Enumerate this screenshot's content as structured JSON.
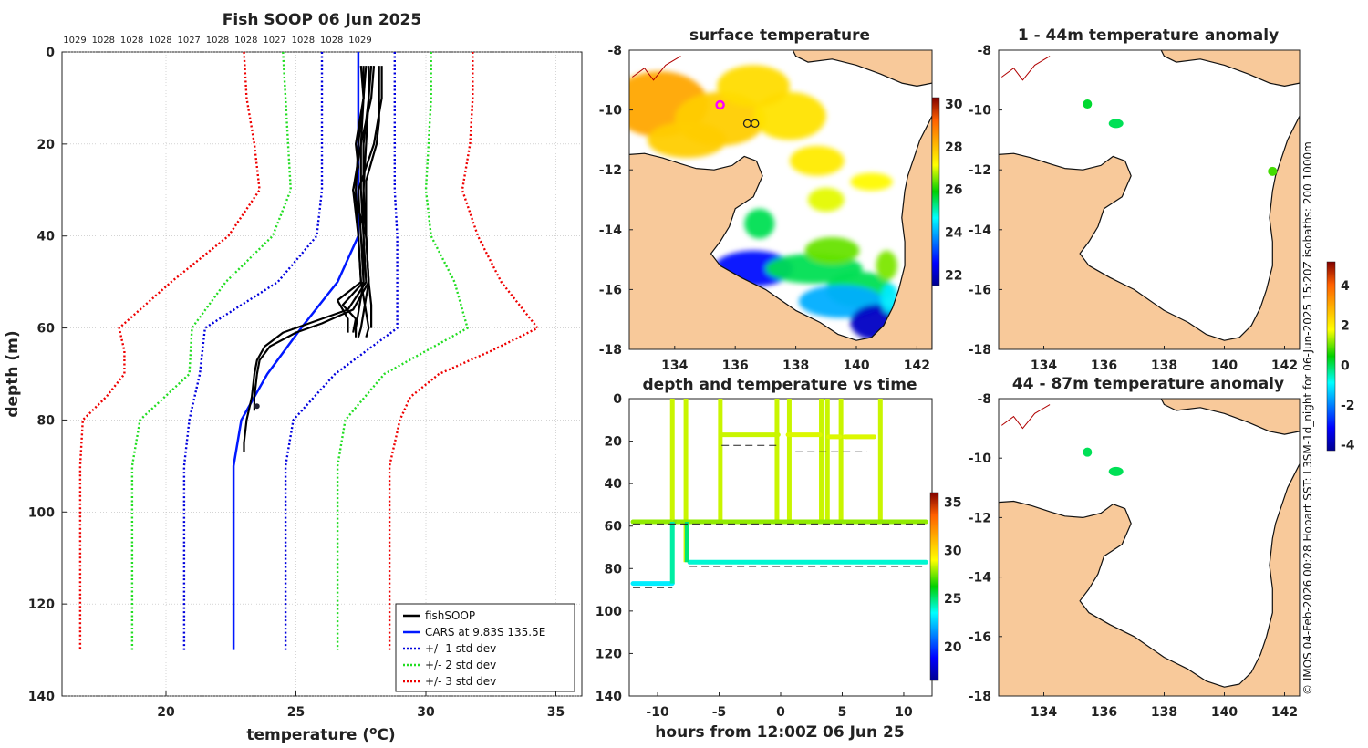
{
  "chart_data": [
    {
      "id": "profile",
      "type": "line",
      "title": "Fish SOOP 06 Jun 2025",
      "xlabel": "temperature (",
      "xlabel_sup": "o",
      "xlabel_end": "C)",
      "ylabel": "depth (m)",
      "xlim": [
        16,
        36
      ],
      "ylim": [
        0,
        140
      ],
      "xticks": [
        20,
        25,
        30,
        35
      ],
      "yticks": [
        0,
        20,
        40,
        60,
        80,
        100,
        120,
        140
      ],
      "density_labels": [
        "1029",
        "1028",
        "1028",
        "1028",
        "1027",
        "1028",
        "1028",
        "1027",
        "1028",
        "1028",
        "1029"
      ],
      "legend": [
        "fishSOOP",
        "CARS at 9.83S 135.5E",
        "+/- 1 std dev",
        "+/- 2 std dev",
        "+/- 3 std dev"
      ],
      "cars": {
        "depth": [
          0,
          10,
          20,
          30,
          40,
          50,
          60,
          70,
          80,
          90,
          100,
          110,
          120,
          130
        ],
        "temp": [
          27.4,
          27.4,
          27.4,
          27.4,
          27.4,
          26.6,
          25.2,
          23.9,
          22.9,
          22.6,
          22.6,
          22.6,
          22.6,
          22.6
        ]
      },
      "std1": {
        "depth": [
          0,
          10,
          20,
          30,
          40,
          50,
          60,
          70,
          80,
          90,
          100,
          110,
          120,
          130
        ],
        "lo": [
          26.0,
          26.0,
          26.0,
          26.0,
          25.8,
          24.3,
          21.5,
          21.3,
          20.9,
          20.7,
          20.7,
          20.7,
          20.7,
          20.7
        ],
        "hi": [
          28.8,
          28.8,
          28.8,
          28.8,
          28.9,
          28.9,
          28.9,
          26.5,
          24.9,
          24.6,
          24.6,
          24.6,
          24.6,
          24.6
        ]
      },
      "std2": {
        "depth": [
          0,
          10,
          20,
          30,
          40,
          50,
          60,
          70,
          80,
          90,
          100,
          110,
          120,
          130
        ],
        "lo": [
          24.5,
          24.6,
          24.7,
          24.8,
          24.1,
          22.3,
          21.0,
          20.9,
          19.0,
          18.7,
          18.7,
          18.7,
          18.7,
          18.7
        ],
        "hi": [
          30.2,
          30.2,
          30.1,
          30.0,
          30.2,
          31.1,
          31.6,
          28.4,
          26.9,
          26.6,
          26.6,
          26.6,
          26.6,
          26.6
        ]
      },
      "std3": {
        "depth": [
          0,
          10,
          20,
          30,
          40,
          50,
          60,
          65,
          70,
          75,
          80,
          90,
          100,
          110,
          120,
          130
        ],
        "lo": [
          23.0,
          23.1,
          23.4,
          23.6,
          22.4,
          20.2,
          18.2,
          18.4,
          18.4,
          17.7,
          16.8,
          16.7,
          16.7,
          16.7,
          16.7,
          16.7
        ],
        "hi": [
          31.8,
          31.8,
          31.7,
          31.4,
          32.0,
          32.9,
          34.3,
          32.5,
          30.5,
          29.4,
          29.0,
          28.6,
          28.6,
          28.6,
          28.6,
          28.6
        ]
      },
      "fish_cast": [
        {
          "depth": [
            3,
            10,
            20,
            30,
            40,
            50,
            56,
            59,
            61,
            64,
            67,
            70,
            75,
            80,
            85,
            87
          ],
          "temp": [
            27.7,
            27.6,
            27.5,
            27.5,
            27.6,
            27.7,
            27.0,
            25.5,
            24.5,
            23.8,
            23.5,
            23.4,
            23.3,
            23.1,
            23.0,
            23.0
          ]
        },
        {
          "depth": [
            3,
            10,
            20,
            30,
            40,
            50,
            56,
            59,
            61,
            64,
            67,
            70,
            75,
            78
          ],
          "temp": [
            27.9,
            27.8,
            27.7,
            27.6,
            27.7,
            27.8,
            27.2,
            26.0,
            25.0,
            24.0,
            23.6,
            23.5,
            23.4,
            23.4
          ]
        },
        {
          "depth": [
            3,
            10,
            20,
            30,
            40,
            50,
            60,
            62
          ],
          "temp": [
            28.0,
            27.9,
            27.5,
            27.2,
            27.7,
            27.8,
            27.5,
            27.4
          ]
        },
        {
          "depth": [
            3,
            10,
            20,
            30,
            40,
            50,
            60,
            62
          ],
          "temp": [
            28.3,
            28.3,
            28.0,
            27.4,
            27.5,
            27.6,
            27.3,
            27.3
          ]
        },
        {
          "depth": [
            3,
            10,
            20,
            30,
            40,
            50,
            60,
            62
          ],
          "temp": [
            27.5,
            27.6,
            27.4,
            27.3,
            27.4,
            27.5,
            27.8,
            27.7
          ]
        },
        {
          "depth": [
            3,
            10,
            20,
            30,
            40,
            50,
            55,
            58,
            61
          ],
          "temp": [
            27.8,
            27.8,
            27.6,
            27.6,
            27.6,
            27.6,
            26.8,
            27.3,
            27.2
          ]
        },
        {
          "depth": [
            3,
            10,
            20,
            25,
            30,
            40,
            50,
            54,
            58,
            61
          ],
          "temp": [
            27.6,
            27.6,
            27.3,
            27.4,
            27.2,
            27.4,
            27.5,
            26.6,
            27.0,
            27.0
          ]
        },
        {
          "depth": [
            3,
            10,
            15,
            20,
            28,
            40,
            50,
            55,
            60
          ],
          "temp": [
            28.2,
            28.2,
            28.2,
            28.1,
            27.7,
            27.7,
            27.8,
            27.9,
            27.9
          ]
        }
      ],
      "marker": {
        "depth": 77,
        "temp": 23.5
      }
    },
    {
      "id": "sst_map",
      "type": "heatmap",
      "title": "surface temperature",
      "xlim": [
        132.5,
        142.5
      ],
      "ylim": [
        -18,
        -8
      ],
      "xticks": [
        134,
        136,
        138,
        140,
        142
      ],
      "yticks": [
        -8,
        -10,
        -12,
        -14,
        -16,
        -18
      ],
      "cbar_range": [
        21.5,
        30.3
      ],
      "cbar_ticks": [
        22,
        24,
        26,
        28,
        30
      ],
      "point": {
        "lon": 135.5,
        "lat": -9.83
      }
    },
    {
      "id": "anom1",
      "type": "scatter",
      "title": "1 - 44m temperature anomaly",
      "xlim": [
        132.5,
        142.5
      ],
      "ylim": [
        -18,
        -8
      ],
      "xticks": [
        134,
        136,
        138,
        140,
        142
      ],
      "yticks": [
        -8,
        -10,
        -12,
        -14,
        -16,
        -18
      ],
      "points": [
        {
          "lon": 135.45,
          "lat": -9.8,
          "anom": 0.2
        },
        {
          "lon": 136.4,
          "lat": -10.45,
          "anom": 0.0
        },
        {
          "lon": 141.6,
          "lat": -12.05,
          "anom": 0.8
        }
      ]
    },
    {
      "id": "anom2",
      "type": "scatter",
      "title": "44 - 87m temperature anomaly",
      "xlim": [
        132.5,
        142.5
      ],
      "ylim": [
        -18,
        -8
      ],
      "xticks": [
        134,
        136,
        138,
        140,
        142
      ],
      "yticks": [
        -8,
        -10,
        -12,
        -14,
        -16,
        -18
      ],
      "points": [
        {
          "lon": 135.45,
          "lat": -9.8,
          "anom": 0.0
        },
        {
          "lon": 136.4,
          "lat": -10.45,
          "anom": 0.0
        }
      ]
    },
    {
      "id": "timeseries",
      "type": "scatter",
      "title": "depth and temperature vs time",
      "xlabel": "hours from 12:00Z 06 Jun 25",
      "xlim": [
        -12.3,
        12.3
      ],
      "ylim": [
        0,
        140
      ],
      "xticks": [
        -10,
        -5,
        0,
        5,
        10
      ],
      "yticks": [
        0,
        20,
        40,
        60,
        80,
        100,
        120,
        140
      ],
      "cbar_range": [
        16.5,
        36
      ],
      "cbar_ticks": [
        20,
        25,
        30,
        35
      ],
      "segments": [
        {
          "t0": -12.0,
          "t1": -8.8,
          "depth": 87,
          "temp": 23.2
        },
        {
          "t0": -8.6,
          "t1": -7.6,
          "depth": 58,
          "temp": 27.6
        },
        {
          "t0": -7.4,
          "t1": 11.8,
          "depth": 77,
          "temp": 24.0
        },
        {
          "t0": -12.0,
          "t1": -8.9,
          "depth": 58,
          "temp": 27.8
        },
        {
          "t0": -8.3,
          "t1": 11.8,
          "depth": 58,
          "temp": 27.8
        },
        {
          "t0": -4.8,
          "t1": -0.2,
          "depth": 17,
          "temp": 28.4
        },
        {
          "t0": 0.6,
          "t1": 3.2,
          "depth": 17,
          "temp": 28.6
        },
        {
          "t0": 3.9,
          "t1": 4.8,
          "depth": 18,
          "temp": 28.6
        },
        {
          "t0": 5.2,
          "t1": 7.6,
          "depth": 18,
          "temp": 28.6
        }
      ],
      "casts": [
        -8.8,
        -7.7,
        -4.9,
        -0.3,
        0.7,
        3.3,
        3.8,
        4.9,
        8.1
      ],
      "dashed": [
        {
          "t0": -12.0,
          "t1": -8.8,
          "depth": 89
        },
        {
          "t0": -7.4,
          "t1": 11.8,
          "depth": 79
        },
        {
          "t0": -12.0,
          "t1": 11.8,
          "depth": 59
        },
        {
          "t0": -4.8,
          "t1": -0.2,
          "depth": 22
        },
        {
          "t0": 1.2,
          "t1": 7.0,
          "depth": 25
        }
      ]
    }
  ],
  "anom_cbar": {
    "range": [
      -4.3,
      5.2
    ],
    "ticks": [
      -4,
      -2,
      0,
      2,
      4
    ]
  },
  "credit": "© IMOS 04-Feb-2026 00:28 Hobart SST: L3SM-1d_night for 06-Jun-2025 15:20Z isobaths: 200  1000m"
}
